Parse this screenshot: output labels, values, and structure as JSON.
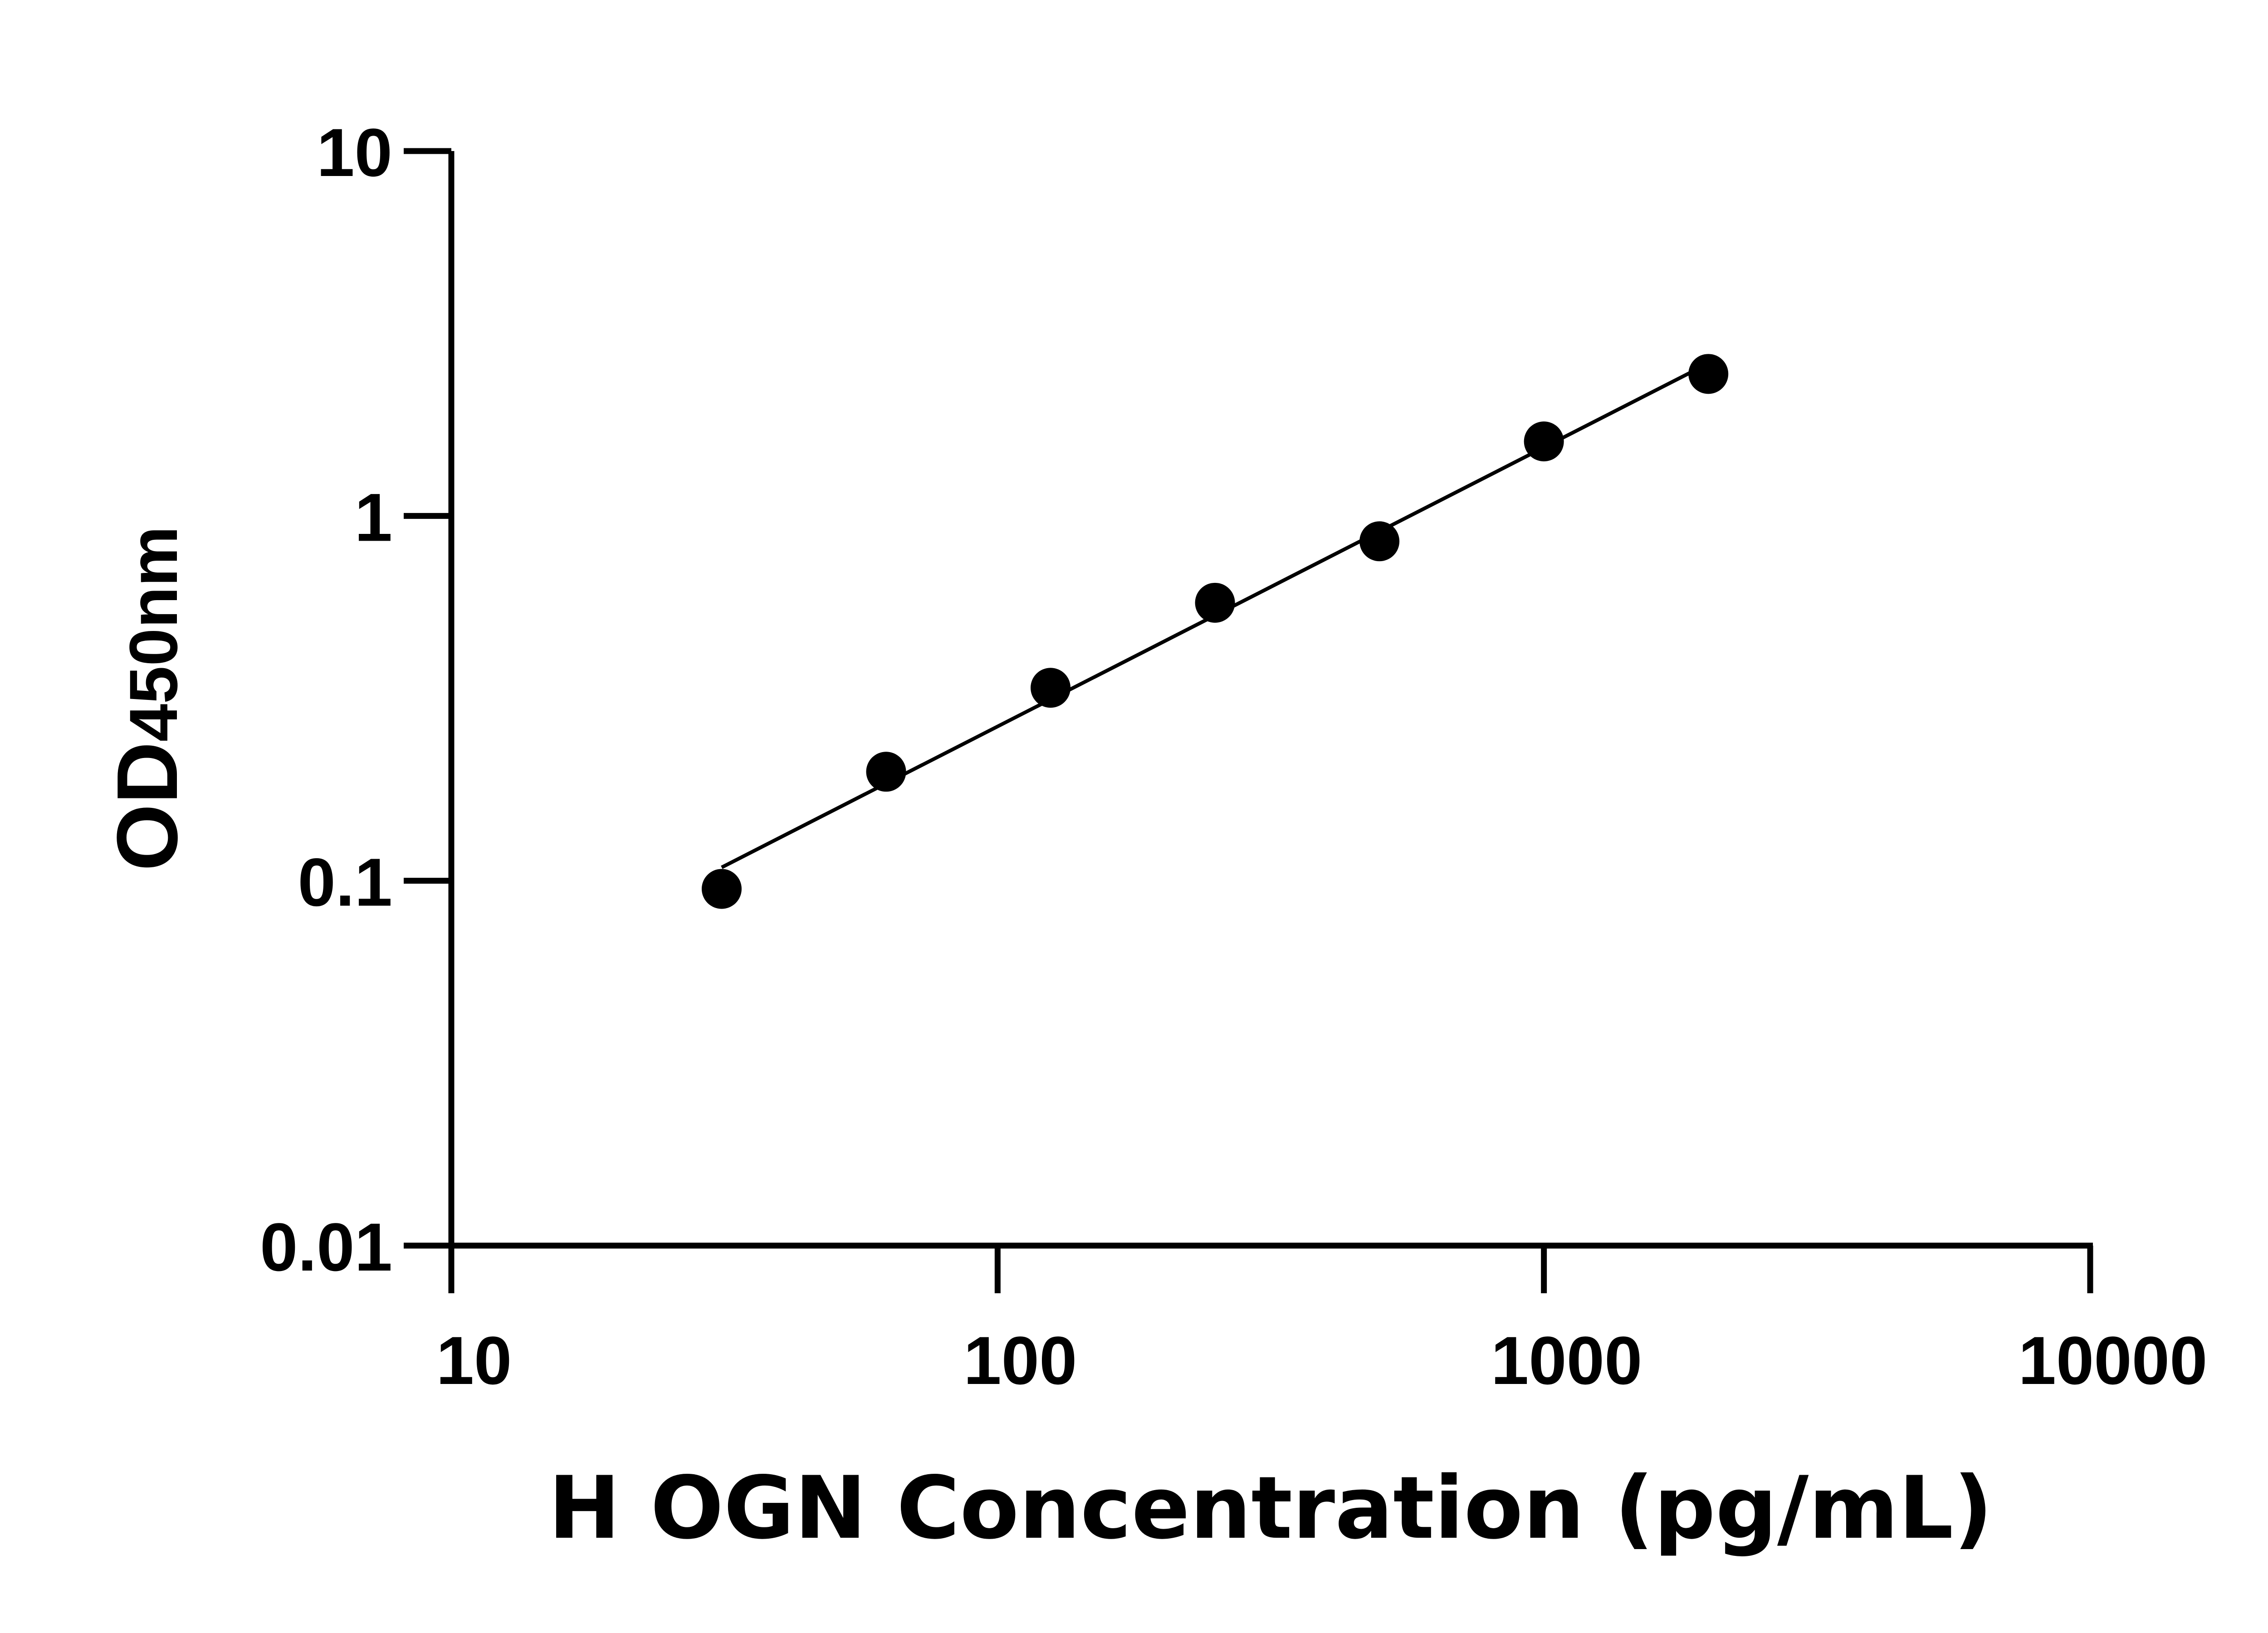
{
  "chart_data": {
    "type": "scatter",
    "xlabel": "H OGN Concentration (pg/mL)",
    "ylabel_main": "OD",
    "ylabel_sub": "450nm",
    "x_scale": "log",
    "y_scale": "log",
    "xlim": [
      10,
      10000
    ],
    "ylim": [
      0.01,
      10
    ],
    "x_ticks": [
      "10",
      "100",
      "1000",
      "10000"
    ],
    "y_ticks": [
      "0.01",
      "0.1",
      "1",
      "10"
    ],
    "grid": false,
    "fit_line": true,
    "marker_color": "#000000",
    "series": [
      {
        "x": [
          31.25,
          62.5,
          125,
          250,
          500,
          1000,
          2000
        ],
        "y": [
          0.095,
          0.199,
          0.338,
          0.578,
          0.852,
          1.6,
          2.45
        ]
      }
    ]
  }
}
